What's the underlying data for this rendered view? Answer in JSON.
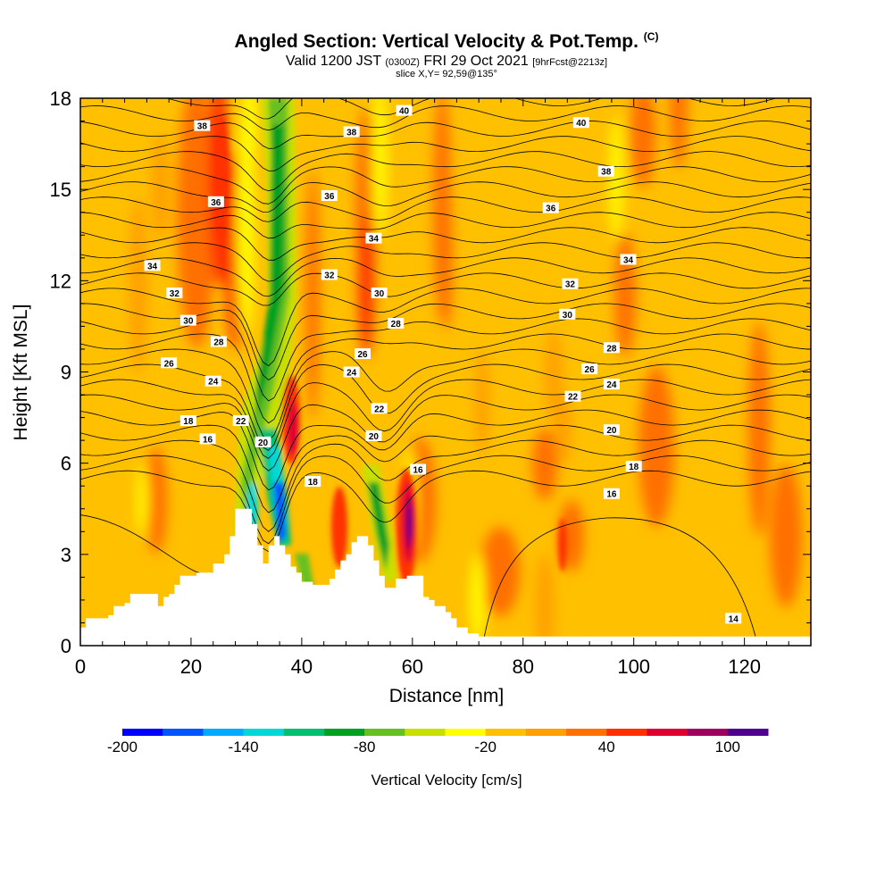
{
  "header": {
    "title": "Angled Section: Vertical Velocity & Pot.Temp.",
    "title_mark": "(C)",
    "valid_prefix": "Valid 1200 JST",
    "valid_utc": "(0300Z)",
    "valid_date": "FRI 29 Oct 2021",
    "valid_fcst": "[9hrFcst@2213z]",
    "slice": "slice X,Y= 92,59@135°"
  },
  "chart_data": {
    "type": "heatmap",
    "title": "Angled Section: Vertical Velocity & Pot.Temp.",
    "xlabel": "Distance [nm]",
    "ylabel": "Height [Kft MSL]",
    "xlim": [
      0,
      132
    ],
    "ylim": [
      0,
      18
    ],
    "xticks": [
      "0",
      "20",
      "40",
      "60",
      "80",
      "100",
      "120"
    ],
    "yticks": [
      "0",
      "3",
      "6",
      "9",
      "12",
      "15",
      "18"
    ],
    "shaded_field": {
      "name": "Vertical Velocity [cm/s]",
      "levels": [
        -200,
        -180,
        -160,
        -140,
        -120,
        -100,
        -80,
        -60,
        -40,
        -20,
        0,
        20,
        40,
        60,
        80,
        100,
        120
      ],
      "colors": [
        "#0000ff",
        "#0055ff",
        "#00aaff",
        "#00d8d8",
        "#00c070",
        "#00a020",
        "#66c020",
        "#c8e000",
        "#ffff00",
        "#ffc000",
        "#ffa000",
        "#ff7000",
        "#ff3000",
        "#e00030",
        "#a00060",
        "#500090"
      ],
      "colorbar_labels": [
        "-200",
        "-140",
        "-80",
        "-20",
        "40",
        "100"
      ],
      "features": [
        {
          "kind": "downdraft",
          "x": 35,
          "ytop": 18,
          "ybottom": 3.5,
          "min": -200
        },
        {
          "kind": "downdraft",
          "x": 54,
          "ytop": 6.5,
          "ybottom": 2.7,
          "min": -90
        },
        {
          "kind": "updraft",
          "x": 38,
          "ytop": 9.5,
          "ybottom": 6,
          "max": 60
        },
        {
          "kind": "updraft",
          "x": 60,
          "ytop": 6,
          "ybottom": 3,
          "max": 110
        },
        {
          "kind": "updraft",
          "x": 24,
          "ytop": 18,
          "ybottom": 11,
          "max": 50
        }
      ]
    },
    "contour_field": {
      "name": "Pot.Temp.",
      "unit": "C",
      "labels": [
        {
          "x": 22,
          "y": 17.1,
          "text": "38"
        },
        {
          "x": 24.5,
          "y": 14.6,
          "text": "36"
        },
        {
          "x": 13,
          "y": 12.5,
          "text": "34"
        },
        {
          "x": 17,
          "y": 11.6,
          "text": "32"
        },
        {
          "x": 19.5,
          "y": 10.7,
          "text": "30"
        },
        {
          "x": 25,
          "y": 10,
          "text": "28"
        },
        {
          "x": 16,
          "y": 9.3,
          "text": "26"
        },
        {
          "x": 24,
          "y": 8.7,
          "text": "24"
        },
        {
          "x": 19.5,
          "y": 7.4,
          "text": "18"
        },
        {
          "x": 23,
          "y": 6.8,
          "text": "16"
        },
        {
          "x": 29,
          "y": 7.4,
          "text": "22"
        },
        {
          "x": 33,
          "y": 6.7,
          "text": "20"
        },
        {
          "x": 42,
          "y": 5.4,
          "text": "18"
        },
        {
          "x": 58.5,
          "y": 17.6,
          "text": "40"
        },
        {
          "x": 49,
          "y": 16.9,
          "text": "38"
        },
        {
          "x": 45,
          "y": 14.8,
          "text": "36"
        },
        {
          "x": 53,
          "y": 13.4,
          "text": "34"
        },
        {
          "x": 45,
          "y": 12.2,
          "text": "32"
        },
        {
          "x": 54,
          "y": 11.6,
          "text": "30"
        },
        {
          "x": 57,
          "y": 10.6,
          "text": "28"
        },
        {
          "x": 51,
          "y": 9.6,
          "text": "26"
        },
        {
          "x": 49,
          "y": 9.0,
          "text": "24"
        },
        {
          "x": 54,
          "y": 7.8,
          "text": "22"
        },
        {
          "x": 53,
          "y": 6.9,
          "text": "20"
        },
        {
          "x": 61,
          "y": 5.8,
          "text": "16"
        },
        {
          "x": 90.5,
          "y": 17.2,
          "text": "40"
        },
        {
          "x": 95,
          "y": 15.6,
          "text": "38"
        },
        {
          "x": 85,
          "y": 14.4,
          "text": "36"
        },
        {
          "x": 99,
          "y": 12.7,
          "text": "34"
        },
        {
          "x": 88.5,
          "y": 11.9,
          "text": "32"
        },
        {
          "x": 88,
          "y": 10.9,
          "text": "30"
        },
        {
          "x": 96,
          "y": 9.8,
          "text": "28"
        },
        {
          "x": 92,
          "y": 9.1,
          "text": "26"
        },
        {
          "x": 96,
          "y": 8.6,
          "text": "24"
        },
        {
          "x": 89,
          "y": 8.2,
          "text": "22"
        },
        {
          "x": 96,
          "y": 7.1,
          "text": "20"
        },
        {
          "x": 100,
          "y": 5.9,
          "text": "18"
        },
        {
          "x": 96,
          "y": 5.0,
          "text": "16"
        },
        {
          "x": 118,
          "y": 0.9,
          "text": "14"
        }
      ]
    },
    "terrain_profile": [
      [
        0,
        0.6
      ],
      [
        1,
        0.9
      ],
      [
        5,
        1.0
      ],
      [
        6,
        1.3
      ],
      [
        8,
        1.4
      ],
      [
        9,
        1.7
      ],
      [
        13,
        1.7
      ],
      [
        14,
        1.3
      ],
      [
        15,
        1.6
      ],
      [
        16,
        1.7
      ],
      [
        17,
        2.0
      ],
      [
        18,
        2.3
      ],
      [
        20,
        2.3
      ],
      [
        21,
        2.4
      ],
      [
        23,
        2.4
      ],
      [
        24,
        2.7
      ],
      [
        26,
        3.0
      ],
      [
        27,
        3.6
      ],
      [
        28,
        4.5
      ],
      [
        30,
        4.5
      ],
      [
        31,
        4.0
      ],
      [
        32,
        3.3
      ],
      [
        33,
        2.7
      ],
      [
        34,
        3.3
      ],
      [
        35,
        3.6
      ],
      [
        36,
        3.3
      ],
      [
        37,
        3.0
      ],
      [
        38,
        2.6
      ],
      [
        39,
        2.4
      ],
      [
        40,
        2.1
      ],
      [
        42,
        2.0
      ],
      [
        44,
        2.0
      ],
      [
        45,
        2.2
      ],
      [
        46,
        2.5
      ],
      [
        47,
        2.8
      ],
      [
        48,
        3.0
      ],
      [
        49,
        3.4
      ],
      [
        50,
        3.6
      ],
      [
        51,
        3.6
      ],
      [
        52,
        3.3
      ],
      [
        53,
        2.8
      ],
      [
        54,
        2.3
      ],
      [
        55,
        1.9
      ],
      [
        56,
        1.9
      ],
      [
        57,
        2.2
      ],
      [
        58,
        2.2
      ],
      [
        59,
        2.3
      ],
      [
        61,
        2.3
      ],
      [
        62,
        1.6
      ],
      [
        63,
        1.5
      ],
      [
        64,
        1.3
      ],
      [
        66,
        1.1
      ],
      [
        67,
        0.9
      ],
      [
        68,
        0.6
      ],
      [
        70,
        0.4
      ],
      [
        72,
        0.3
      ],
      [
        74,
        0.3
      ],
      [
        132,
        0.3
      ]
    ]
  }
}
